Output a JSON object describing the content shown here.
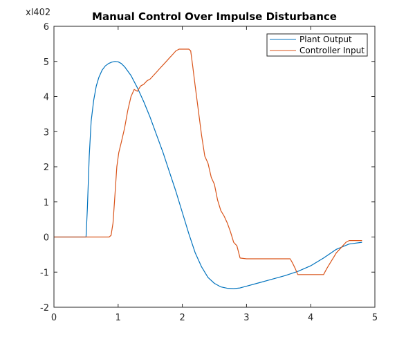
{
  "chart_data": {
    "type": "line",
    "title": "Manual Control Over Impulse Disturbance",
    "y_multiplier_label": "xl402",
    "xlabel": "",
    "ylabel": "",
    "xlim": [
      0,
      5
    ],
    "ylim": [
      -2,
      6
    ],
    "xticks": [
      0,
      1,
      2,
      3,
      4,
      5
    ],
    "yticks": [
      -2,
      -1,
      0,
      1,
      2,
      3,
      4,
      5,
      6
    ],
    "grid": false,
    "legend_location": "top-right",
    "series": [
      {
        "name": "Plant Output",
        "color": "#0072BD",
        "x": [
          0,
          0.5,
          0.52,
          0.55,
          0.58,
          0.62,
          0.66,
          0.7,
          0.75,
          0.8,
          0.85,
          0.9,
          0.95,
          1.0,
          1.05,
          1.1,
          1.2,
          1.3,
          1.4,
          1.5,
          1.6,
          1.7,
          1.8,
          1.9,
          2.0,
          2.1,
          2.2,
          2.3,
          2.4,
          2.5,
          2.6,
          2.7,
          2.8,
          2.9,
          3.0,
          3.2,
          3.4,
          3.6,
          3.8,
          4.0,
          4.2,
          4.4,
          4.6,
          4.8
        ],
        "y": [
          0,
          0,
          0.8,
          2.3,
          3.3,
          3.9,
          4.3,
          4.55,
          4.75,
          4.87,
          4.94,
          4.98,
          5.0,
          4.99,
          4.94,
          4.85,
          4.6,
          4.25,
          3.85,
          3.4,
          2.9,
          2.4,
          1.85,
          1.3,
          0.7,
          0.1,
          -0.45,
          -0.85,
          -1.15,
          -1.32,
          -1.42,
          -1.46,
          -1.47,
          -1.45,
          -1.4,
          -1.3,
          -1.2,
          -1.1,
          -0.98,
          -0.82,
          -0.6,
          -0.35,
          -0.2,
          -0.15
        ]
      },
      {
        "name": "Controller Input",
        "color": "#D95319",
        "x": [
          0,
          0.86,
          0.89,
          0.92,
          0.95,
          0.98,
          1.01,
          1.05,
          1.1,
          1.15,
          1.2,
          1.25,
          1.3,
          1.35,
          1.4,
          1.45,
          1.5,
          1.55,
          1.6,
          1.65,
          1.7,
          1.75,
          1.8,
          1.85,
          1.9,
          1.95,
          2.0,
          2.05,
          2.1,
          2.13,
          2.16,
          2.2,
          2.25,
          2.3,
          2.35,
          2.4,
          2.45,
          2.5,
          2.55,
          2.6,
          2.65,
          2.7,
          2.75,
          2.8,
          2.85,
          2.9,
          3.0,
          3.2,
          3.4,
          3.6,
          3.68,
          3.72,
          3.76,
          3.8,
          3.9,
          4.0,
          4.1,
          4.2,
          4.25,
          4.3,
          4.35,
          4.4,
          4.45,
          4.5,
          4.55,
          4.6,
          4.7,
          4.8
        ],
        "y": [
          0,
          0,
          0.05,
          0.4,
          1.2,
          2.0,
          2.4,
          2.7,
          3.1,
          3.6,
          4.0,
          4.2,
          4.15,
          4.3,
          4.35,
          4.45,
          4.5,
          4.6,
          4.7,
          4.8,
          4.9,
          5.0,
          5.1,
          5.2,
          5.3,
          5.35,
          5.35,
          5.35,
          5.35,
          5.3,
          4.9,
          4.3,
          3.6,
          2.9,
          2.3,
          2.1,
          1.7,
          1.5,
          1.05,
          0.75,
          0.6,
          0.4,
          0.15,
          -0.15,
          -0.25,
          -0.6,
          -0.62,
          -0.62,
          -0.62,
          -0.62,
          -0.62,
          -0.75,
          -0.9,
          -1.07,
          -1.07,
          -1.07,
          -1.07,
          -1.07,
          -0.9,
          -0.75,
          -0.6,
          -0.45,
          -0.35,
          -0.25,
          -0.15,
          -0.1,
          -0.1,
          -0.1
        ]
      }
    ]
  }
}
